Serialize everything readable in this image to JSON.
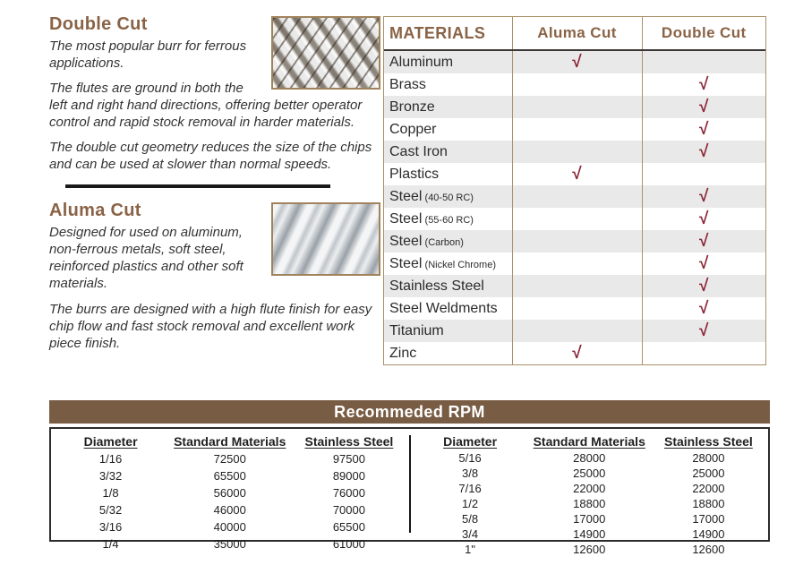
{
  "colors": {
    "heading_brown": "#8a6346",
    "table_border_tan": "#ab9068",
    "check_red": "#8b2433",
    "row_shade_gray": "#e9e9e9",
    "rpm_bar_brown": "#785c43",
    "header_underline_dark": "#3a3633",
    "divider_black": "#191919"
  },
  "double_cut": {
    "title": "Double Cut",
    "image": "double-cut-burr-photo",
    "paragraphs": [
      "The most popular burr for ferrous applications.",
      "The flutes are ground in both the left and right hand directions, offering better operator control and rapid stock removal in harder materials.",
      "The double cut geometry reduces the size of the chips and can be used at slower than normal speeds."
    ]
  },
  "aluma_cut": {
    "title": "Aluma Cut",
    "image": "aluma-cut-burr-photo",
    "paragraphs": [
      "Designed for used on aluminum, non-ferrous metals, soft steel, reinforced plastics and other soft materials.",
      "The burrs are designed with a high flute finish for easy chip flow and fast stock removal and excellent work piece finish."
    ]
  },
  "materials_table": {
    "headers": [
      "MATERIALS",
      "Aluma Cut",
      "Double Cut"
    ],
    "check_glyph": "√",
    "rows": [
      {
        "material": "Aluminum",
        "note": "",
        "aluma_cut": true,
        "double_cut": false
      },
      {
        "material": "Brass",
        "note": "",
        "aluma_cut": false,
        "double_cut": true
      },
      {
        "material": "Bronze",
        "note": "",
        "aluma_cut": false,
        "double_cut": true
      },
      {
        "material": "Copper",
        "note": "",
        "aluma_cut": false,
        "double_cut": true
      },
      {
        "material": "Cast Iron",
        "note": "",
        "aluma_cut": false,
        "double_cut": true
      },
      {
        "material": "Plastics",
        "note": "",
        "aluma_cut": true,
        "double_cut": false
      },
      {
        "material": "Steel",
        "note": "(40-50 RC)",
        "aluma_cut": false,
        "double_cut": true
      },
      {
        "material": "Steel",
        "note": "(55-60 RC)",
        "aluma_cut": false,
        "double_cut": true
      },
      {
        "material": "Steel",
        "note": "(Carbon)",
        "aluma_cut": false,
        "double_cut": true
      },
      {
        "material": "Steel",
        "note": "(Nickel Chrome)",
        "aluma_cut": false,
        "double_cut": true
      },
      {
        "material": "Stainless Steel",
        "note": "",
        "aluma_cut": false,
        "double_cut": true
      },
      {
        "material": "Steel Weldments",
        "note": "",
        "aluma_cut": false,
        "double_cut": true
      },
      {
        "material": "Titanium",
        "note": "",
        "aluma_cut": false,
        "double_cut": true
      },
      {
        "material": "Zinc",
        "note": "",
        "aluma_cut": true,
        "double_cut": false
      }
    ]
  },
  "rpm_table": {
    "title": "Recommeded RPM",
    "columns": [
      "Diameter",
      "Standard Materials",
      "Stainless Steel"
    ],
    "left_rows": [
      [
        "1/16",
        "72500",
        "97500"
      ],
      [
        "3/32",
        "65500",
        "89000"
      ],
      [
        "1/8",
        "56000",
        "76000"
      ],
      [
        "5/32",
        "46000",
        "70000"
      ],
      [
        "3/16",
        "40000",
        "65500"
      ],
      [
        "1/4",
        "35000",
        "61000"
      ]
    ],
    "right_rows": [
      [
        "5/16",
        "28000",
        "28000"
      ],
      [
        "3/8",
        "25000",
        "25000"
      ],
      [
        "7/16",
        "22000",
        "22000"
      ],
      [
        "1/2",
        "18800",
        "18800"
      ],
      [
        "5/8",
        "17000",
        "17000"
      ],
      [
        "3/4",
        "14900",
        "14900"
      ],
      [
        "1\"",
        "12600",
        "12600"
      ]
    ]
  }
}
